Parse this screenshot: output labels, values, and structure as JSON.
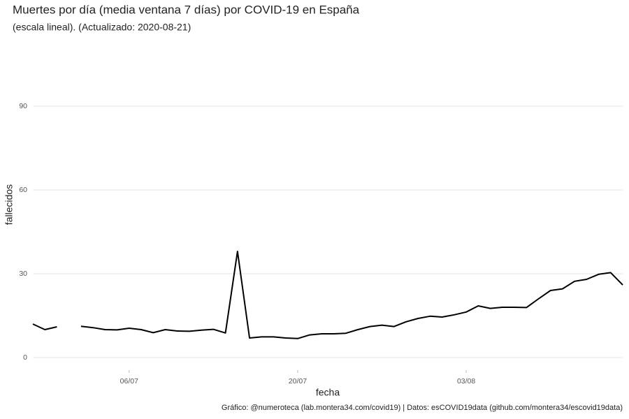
{
  "chart_data": {
    "type": "line",
    "title": "Muertes por día (media ventana 7 días) por COVID-19 en España",
    "subtitle": "(escala lineal). (Actualizado: 2020-08-21)",
    "x_label": "fecha",
    "y_label": "fallecidos",
    "caption": "Gráfico: @numeroteca (lab.montera34.com/covid19) | Datos: esCOVID19data (github.com/montera34/escovid19data)",
    "x": [
      "28/06",
      "29/06",
      "30/06",
      "01/07",
      "02/07",
      "03/07",
      "04/07",
      "05/07",
      "06/07",
      "07/07",
      "08/07",
      "09/07",
      "10/07",
      "11/07",
      "12/07",
      "13/07",
      "14/07",
      "15/07",
      "16/07",
      "17/07",
      "18/07",
      "19/07",
      "20/07",
      "21/07",
      "22/07",
      "23/07",
      "24/07",
      "25/07",
      "26/07",
      "27/07",
      "28/07",
      "29/07",
      "30/07",
      "31/07",
      "01/08",
      "02/08",
      "03/08",
      "04/08",
      "05/08",
      "06/08",
      "07/08",
      "08/08",
      "09/08",
      "10/08",
      "11/08",
      "12/08",
      "13/08",
      "14/08",
      "15/08",
      "16/08"
    ],
    "series": [
      {
        "name": "fallecidos",
        "color": "#000000",
        "values": [
          12,
          10,
          11,
          null,
          11.2,
          10.7,
          10,
          9.9,
          10.5,
          10,
          8.9,
          10,
          9.5,
          9.4,
          9.8,
          10.1,
          8.8,
          38,
          7,
          7.4,
          7.4,
          7,
          6.8,
          8.1,
          8.5,
          8.5,
          8.7,
          10,
          11.1,
          11.6,
          11.1,
          12.8,
          14,
          14.8,
          14.5,
          15.3,
          16.3,
          18.5,
          17.6,
          18,
          18,
          17.9,
          21,
          24,
          24.6,
          27.3,
          28,
          29.8,
          30.4,
          26
        ]
      }
    ],
    "xticks": [
      "06/07",
      "20/07",
      "03/08"
    ],
    "ylim": [
      -4.5,
      104.75
    ],
    "yticks": [
      0,
      30,
      60,
      90
    ],
    "grid": true
  }
}
